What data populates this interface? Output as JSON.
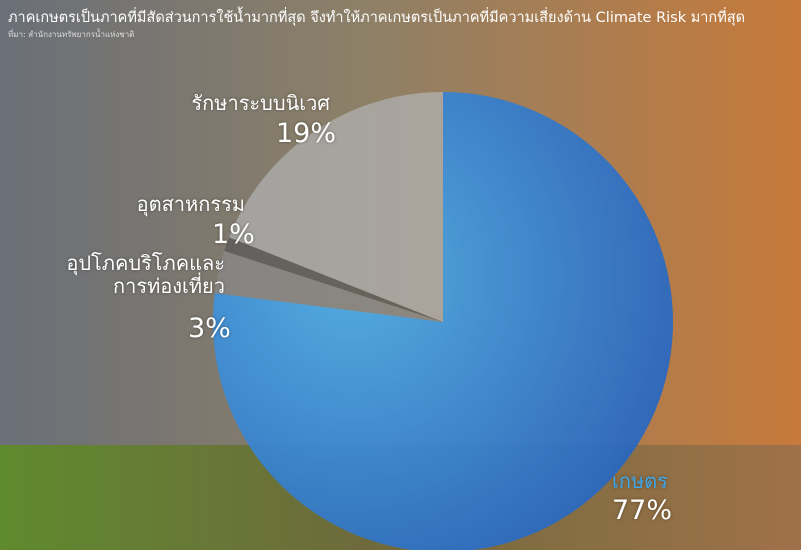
{
  "chart_data": {
    "type": "pie",
    "title": "ภาคเกษตรเป็นภาคที่มีสัดส่วนการใช้น้ำมากที่สุด จึงทำให้ภาคเกษตรเป็นภาคที่มีความเสี่ยงด้าน Climate Risk มากที่สุด",
    "subtitle": "ที่มา: สำนักงานทรัพยากรน้ำแห่งชาติ",
    "categories": [
      "เกษตร",
      "อุปโภคบริโภคและ\nการท่องเที่ยว",
      "อุตสาหกรรม",
      "รักษาระบบนิเวศ"
    ],
    "values": [
      77,
      3,
      1,
      19
    ],
    "value_labels": [
      "77%",
      "3%",
      "1%",
      "19%"
    ],
    "colors": [
      "#3f9fe0",
      "#8a8a8a",
      "#5a5a5a",
      "#b0b0b0"
    ]
  }
}
